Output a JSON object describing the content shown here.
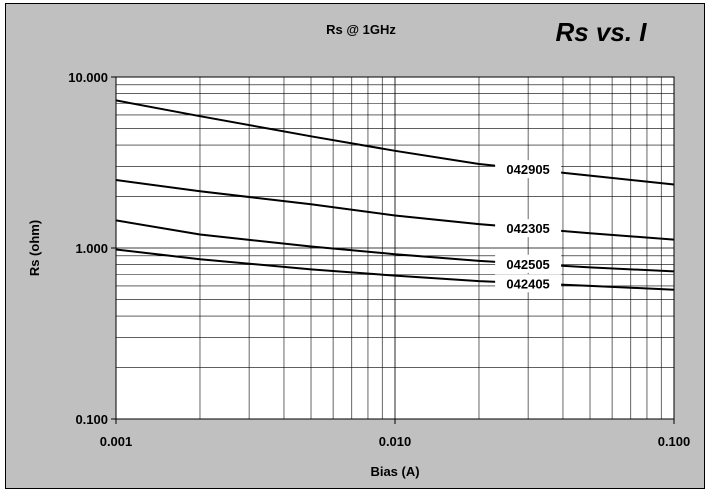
{
  "chart_data": {
    "type": "line",
    "title": "Rs @ 1GHz",
    "subtitle": "Rs vs. I",
    "xlabel": "Bias (A)",
    "ylabel": "Rs (ohm)",
    "x_scale": "log",
    "y_scale": "log",
    "xlim": [
      0.001,
      0.1
    ],
    "ylim": [
      0.1,
      10
    ],
    "x_ticks": [
      0.001,
      0.01,
      0.1
    ],
    "x_tick_labels": [
      "0.001",
      "0.010",
      "0.100"
    ],
    "y_ticks": [
      0.1,
      1,
      10
    ],
    "y_tick_labels": [
      "0.100",
      "1.000",
      "10.000"
    ],
    "grid": true,
    "legend": "none",
    "series": [
      {
        "name": "042905",
        "x": [
          0.001,
          0.002,
          0.005,
          0.01,
          0.02,
          0.05,
          0.1
        ],
        "y": [
          7.3,
          5.9,
          4.5,
          3.7,
          3.1,
          2.65,
          2.35
        ]
      },
      {
        "name": "042305",
        "x": [
          0.001,
          0.002,
          0.005,
          0.01,
          0.02,
          0.05,
          0.1
        ],
        "y": [
          2.5,
          2.15,
          1.8,
          1.55,
          1.38,
          1.22,
          1.12
        ]
      },
      {
        "name": "042505",
        "x": [
          0.001,
          0.002,
          0.005,
          0.01,
          0.02,
          0.05,
          0.1
        ],
        "y": [
          1.45,
          1.2,
          1.02,
          0.92,
          0.84,
          0.77,
          0.73
        ]
      },
      {
        "name": "042405",
        "x": [
          0.001,
          0.002,
          0.005,
          0.01,
          0.02,
          0.05,
          0.1
        ],
        "y": [
          0.98,
          0.86,
          0.75,
          0.69,
          0.64,
          0.6,
          0.57
        ]
      }
    ]
  }
}
